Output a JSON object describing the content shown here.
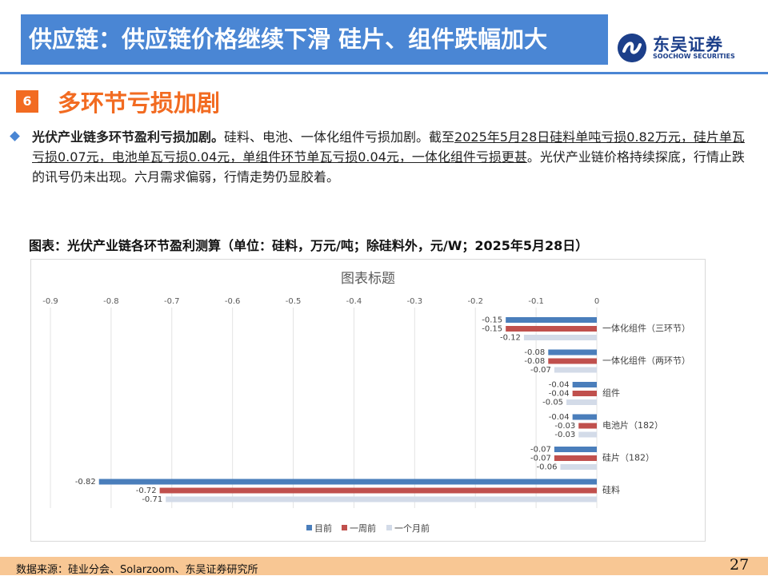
{
  "header": {
    "title": "供应链：供应链价格继续下滑 硅片、组件跌幅加大",
    "logo_cn": "东吴证券",
    "logo_en": "SOOCHOW SECURITIES"
  },
  "section": {
    "number": "6",
    "title": "多环节亏损加剧"
  },
  "paragraph": {
    "bold": "光伏产业链多环节盈利亏损加剧。",
    "text1": "硅料、电池、一体化组件亏损加剧。截至",
    "underline": "2025年5月28日硅料单吨亏损0.82万元，硅片单瓦亏损0.07元，电池单瓦亏损0.04元，单组件环节单瓦亏损0.04元，一体化组件亏损更甚",
    "text2": "。光伏产业链价格持续探底，行情止跌的讯号仍未出现。六月需求偏弱，行情走势仍显胶着。"
  },
  "figure_caption": "图表：光伏产业链各环节盈利测算（单位：硅料，万元/吨；除硅料外，元/W；2025年5月28日）",
  "chart_data": {
    "type": "bar",
    "orientation": "horizontal",
    "title": "图表标题",
    "categories": [
      "一体化组件（三环节）",
      "一体化组件（两环节）",
      "组件",
      "电池片（182）",
      "硅片（182）",
      "硅料"
    ],
    "series": [
      {
        "name": "目前",
        "color": "#4a7ebb",
        "values": [
          -0.15,
          -0.08,
          -0.04,
          -0.04,
          -0.07,
          -0.82
        ]
      },
      {
        "name": "一周前",
        "color": "#c0504d",
        "values": [
          -0.15,
          -0.08,
          -0.04,
          -0.03,
          -0.07,
          -0.72
        ]
      },
      {
        "name": "一个月前",
        "color": "#d3dbe8",
        "values": [
          -0.12,
          -0.07,
          -0.05,
          -0.03,
          -0.06,
          -0.71
        ]
      }
    ],
    "xlim": [
      -0.9,
      0
    ],
    "ticks": [
      "-0.9",
      "-0.8",
      "-0.7",
      "-0.6",
      "-0.5",
      "-0.4",
      "-0.3",
      "-0.2",
      "-0.1",
      "0"
    ],
    "grid": true,
    "axis_position": "top",
    "legend_position": "bottom"
  },
  "footer": {
    "source": "数据来源：硅业分会、Solarzoom、东吴证券研究所",
    "page": "27"
  }
}
